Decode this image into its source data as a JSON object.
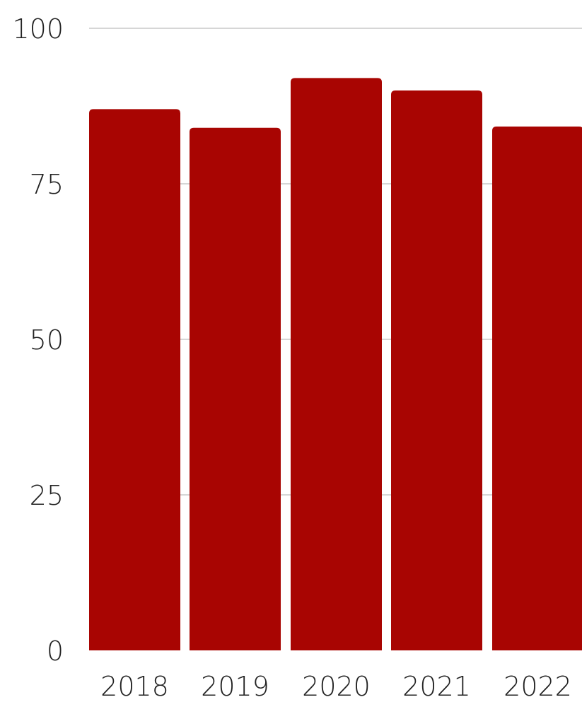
{
  "chart_data": {
    "type": "bar",
    "categories": [
      "2018",
      "2019",
      "2020",
      "2021",
      "2022"
    ],
    "values": [
      87,
      84,
      92,
      90,
      84.2
    ],
    "yticks": [
      "0",
      "25",
      "50",
      "75",
      "100"
    ],
    "ylim": [
      0,
      100
    ],
    "grid": true,
    "colors": {
      "bar": "#a80502",
      "grid": "#c8c8c8",
      "text": "#222222"
    }
  }
}
